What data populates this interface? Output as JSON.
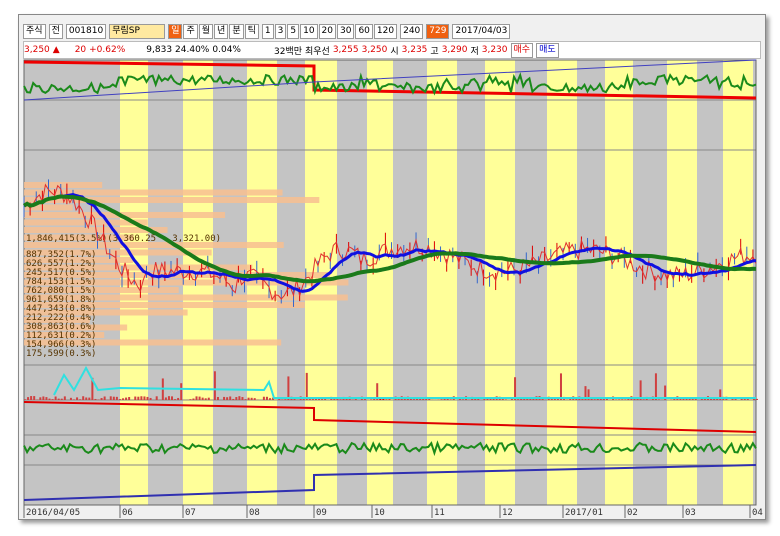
{
  "toolbar": {
    "market": "주식",
    "board": "전",
    "code": "001810",
    "name": "무림SP",
    "periods": [
      "일",
      "주",
      "월",
      "년",
      "분",
      "틱"
    ],
    "minutes": [
      "1",
      "3",
      "5",
      "10",
      "20",
      "30",
      "60",
      "120"
    ],
    "count": "240",
    "total": "729",
    "date": "2017/04/03"
  },
  "quote": {
    "price": "3,250",
    "arrow": "▲",
    "change": "20",
    "rate": "+0.62%",
    "volume": "9,833",
    "turnover": "24.40%",
    "ratio": "0.04%",
    "amount": "32백만",
    "best": "최우선",
    "ask": "3,255",
    "bid": "3,250",
    "open_label": "시",
    "open": "3,235",
    "high_label": "고",
    "high": "3,290",
    "low_label": "저",
    "low": "3,230",
    "buy": "매수",
    "sell": "매도"
  },
  "profile": [
    "1,846,415(3.5%)(3,360.25 - 3,321.00)",
    "887,352(1.7%)",
    "626,557(1.2%)",
    "245,517(0.5%)",
    "784,153(1.5%)",
    "762,080(1.5%)",
    "961,659(1.8%)",
    "447,343(0.8%)",
    "212,222(0.4%)",
    "308,863(0.6%)",
    "112,631(0.2%)",
    "154,966(0.3%)",
    "175,599(0.3%)"
  ],
  "axis": {
    "dates": [
      "2016/04/05",
      "06",
      "07",
      "08",
      "09",
      "10",
      "11",
      "12",
      "2017/01",
      "02",
      "03",
      "04"
    ]
  }
}
